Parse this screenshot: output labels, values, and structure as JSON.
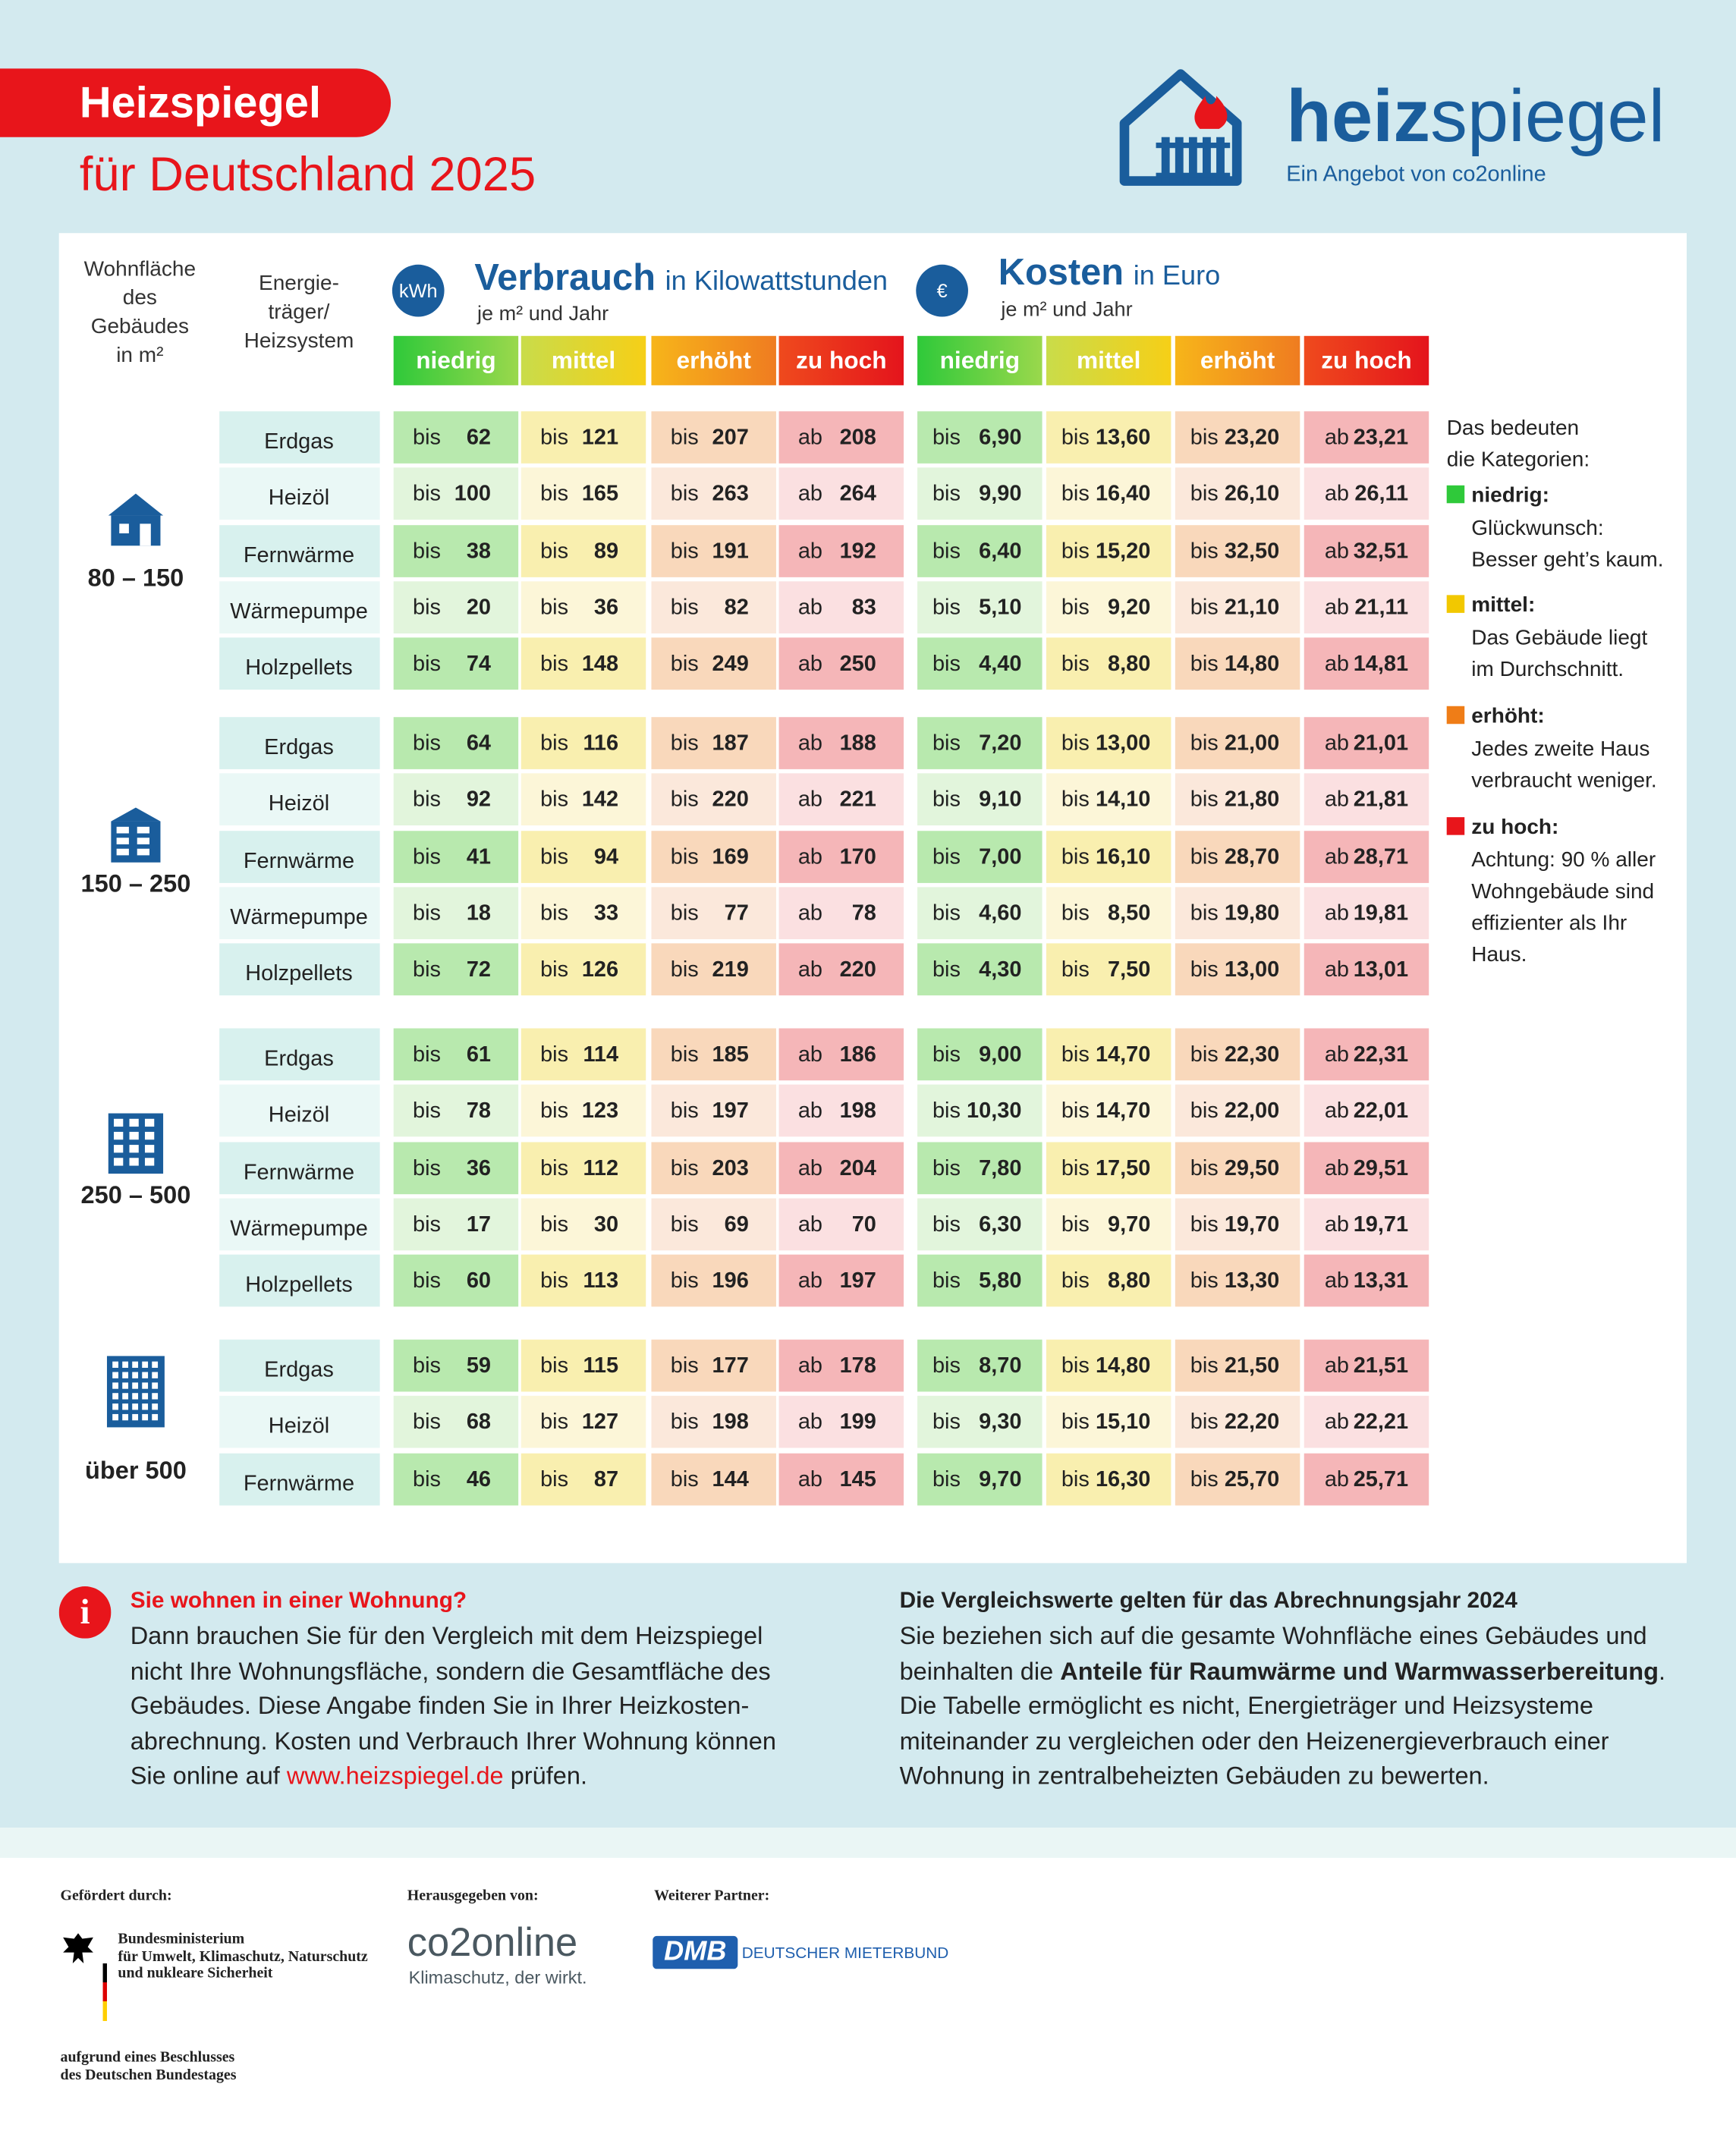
{
  "header": {
    "title": "Heizspiegel",
    "subtitle": "für Deutschland 2025",
    "logo_bold": "heiz",
    "logo_light": "spiegel",
    "logo_tagline": "Ein Angebot von co2online"
  },
  "table": {
    "area_header": "Wohnfläche\ndes\nGebäudes\nin m²",
    "carrier_header": "Energie-\nträger/\nHeizsystem",
    "consumption": {
      "icon": "kWh",
      "title": "Verbrauch",
      "unit": "in Kilowattstunden",
      "per": "je m² und Jahr",
      "categories": [
        "niedrig",
        "mittel",
        "erhöht",
        "zu hoch"
      ]
    },
    "costs": {
      "icon": "€",
      "title": "Kosten",
      "unit": "in Euro",
      "per": "je m² und Jahr",
      "categories": [
        "niedrig",
        "mittel",
        "erhöht",
        "zu hoch"
      ]
    },
    "groups": [
      {
        "area": "80 – 150",
        "rows": [
          {
            "carrier": "Erdgas",
            "v": [
              [
                "bis",
                "62"
              ],
              [
                "bis",
                "121"
              ],
              [
                "bis",
                "207"
              ],
              [
                "ab",
                "208"
              ]
            ],
            "k": [
              [
                "bis",
                "6,90"
              ],
              [
                "bis",
                "13,60"
              ],
              [
                "bis",
                "23,20"
              ],
              [
                "ab",
                "23,21"
              ]
            ]
          },
          {
            "carrier": "Heizöl",
            "v": [
              [
                "bis",
                "100"
              ],
              [
                "bis",
                "165"
              ],
              [
                "bis",
                "263"
              ],
              [
                "ab",
                "264"
              ]
            ],
            "k": [
              [
                "bis",
                "9,90"
              ],
              [
                "bis",
                "16,40"
              ],
              [
                "bis",
                "26,10"
              ],
              [
                "ab",
                "26,11"
              ]
            ]
          },
          {
            "carrier": "Fernwärme",
            "v": [
              [
                "bis",
                "38"
              ],
              [
                "bis",
                "89"
              ],
              [
                "bis",
                "191"
              ],
              [
                "ab",
                "192"
              ]
            ],
            "k": [
              [
                "bis",
                "6,40"
              ],
              [
                "bis",
                "15,20"
              ],
              [
                "bis",
                "32,50"
              ],
              [
                "ab",
                "32,51"
              ]
            ]
          },
          {
            "carrier": "Wärmepumpe",
            "v": [
              [
                "bis",
                "20"
              ],
              [
                "bis",
                "36"
              ],
              [
                "bis",
                "82"
              ],
              [
                "ab",
                "83"
              ]
            ],
            "k": [
              [
                "bis",
                "5,10"
              ],
              [
                "bis",
                "9,20"
              ],
              [
                "bis",
                "21,10"
              ],
              [
                "ab",
                "21,11"
              ]
            ]
          },
          {
            "carrier": "Holzpellets",
            "v": [
              [
                "bis",
                "74"
              ],
              [
                "bis",
                "148"
              ],
              [
                "bis",
                "249"
              ],
              [
                "ab",
                "250"
              ]
            ],
            "k": [
              [
                "bis",
                "4,40"
              ],
              [
                "bis",
                "8,80"
              ],
              [
                "bis",
                "14,80"
              ],
              [
                "ab",
                "14,81"
              ]
            ]
          }
        ]
      },
      {
        "area": "150 – 250",
        "rows": [
          {
            "carrier": "Erdgas",
            "v": [
              [
                "bis",
                "64"
              ],
              [
                "bis",
                "116"
              ],
              [
                "bis",
                "187"
              ],
              [
                "ab",
                "188"
              ]
            ],
            "k": [
              [
                "bis",
                "7,20"
              ],
              [
                "bis",
                "13,00"
              ],
              [
                "bis",
                "21,00"
              ],
              [
                "ab",
                "21,01"
              ]
            ]
          },
          {
            "carrier": "Heizöl",
            "v": [
              [
                "bis",
                "92"
              ],
              [
                "bis",
                "142"
              ],
              [
                "bis",
                "220"
              ],
              [
                "ab",
                "221"
              ]
            ],
            "k": [
              [
                "bis",
                "9,10"
              ],
              [
                "bis",
                "14,10"
              ],
              [
                "bis",
                "21,80"
              ],
              [
                "ab",
                "21,81"
              ]
            ]
          },
          {
            "carrier": "Fernwärme",
            "v": [
              [
                "bis",
                "41"
              ],
              [
                "bis",
                "94"
              ],
              [
                "bis",
                "169"
              ],
              [
                "ab",
                "170"
              ]
            ],
            "k": [
              [
                "bis",
                "7,00"
              ],
              [
                "bis",
                "16,10"
              ],
              [
                "bis",
                "28,70"
              ],
              [
                "ab",
                "28,71"
              ]
            ]
          },
          {
            "carrier": "Wärmepumpe",
            "v": [
              [
                "bis",
                "18"
              ],
              [
                "bis",
                "33"
              ],
              [
                "bis",
                "77"
              ],
              [
                "ab",
                "78"
              ]
            ],
            "k": [
              [
                "bis",
                "4,60"
              ],
              [
                "bis",
                "8,50"
              ],
              [
                "bis",
                "19,80"
              ],
              [
                "ab",
                "19,81"
              ]
            ]
          },
          {
            "carrier": "Holzpellets",
            "v": [
              [
                "bis",
                "72"
              ],
              [
                "bis",
                "126"
              ],
              [
                "bis",
                "219"
              ],
              [
                "ab",
                "220"
              ]
            ],
            "k": [
              [
                "bis",
                "4,30"
              ],
              [
                "bis",
                "7,50"
              ],
              [
                "bis",
                "13,00"
              ],
              [
                "ab",
                "13,01"
              ]
            ]
          }
        ]
      },
      {
        "area": "250 – 500",
        "rows": [
          {
            "carrier": "Erdgas",
            "v": [
              [
                "bis",
                "61"
              ],
              [
                "bis",
                "114"
              ],
              [
                "bis",
                "185"
              ],
              [
                "ab",
                "186"
              ]
            ],
            "k": [
              [
                "bis",
                "9,00"
              ],
              [
                "bis",
                "14,70"
              ],
              [
                "bis",
                "22,30"
              ],
              [
                "ab",
                "22,31"
              ]
            ]
          },
          {
            "carrier": "Heizöl",
            "v": [
              [
                "bis",
                "78"
              ],
              [
                "bis",
                "123"
              ],
              [
                "bis",
                "197"
              ],
              [
                "ab",
                "198"
              ]
            ],
            "k": [
              [
                "bis",
                "10,30"
              ],
              [
                "bis",
                "14,70"
              ],
              [
                "bis",
                "22,00"
              ],
              [
                "ab",
                "22,01"
              ]
            ]
          },
          {
            "carrier": "Fernwärme",
            "v": [
              [
                "bis",
                "36"
              ],
              [
                "bis",
                "112"
              ],
              [
                "bis",
                "203"
              ],
              [
                "ab",
                "204"
              ]
            ],
            "k": [
              [
                "bis",
                "7,80"
              ],
              [
                "bis",
                "17,50"
              ],
              [
                "bis",
                "29,50"
              ],
              [
                "ab",
                "29,51"
              ]
            ]
          },
          {
            "carrier": "Wärmepumpe",
            "v": [
              [
                "bis",
                "17"
              ],
              [
                "bis",
                "30"
              ],
              [
                "bis",
                "69"
              ],
              [
                "ab",
                "70"
              ]
            ],
            "k": [
              [
                "bis",
                "6,30"
              ],
              [
                "bis",
                "9,70"
              ],
              [
                "bis",
                "19,70"
              ],
              [
                "ab",
                "19,71"
              ]
            ]
          },
          {
            "carrier": "Holzpellets",
            "v": [
              [
                "bis",
                "60"
              ],
              [
                "bis",
                "113"
              ],
              [
                "bis",
                "196"
              ],
              [
                "ab",
                "197"
              ]
            ],
            "k": [
              [
                "bis",
                "5,80"
              ],
              [
                "bis",
                "8,80"
              ],
              [
                "bis",
                "13,30"
              ],
              [
                "ab",
                "13,31"
              ]
            ]
          }
        ]
      },
      {
        "area": "über 500",
        "rows": [
          {
            "carrier": "Erdgas",
            "v": [
              [
                "bis",
                "59"
              ],
              [
                "bis",
                "115"
              ],
              [
                "bis",
                "177"
              ],
              [
                "ab",
                "178"
              ]
            ],
            "k": [
              [
                "bis",
                "8,70"
              ],
              [
                "bis",
                "14,80"
              ],
              [
                "bis",
                "21,50"
              ],
              [
                "ab",
                "21,51"
              ]
            ]
          },
          {
            "carrier": "Heizöl",
            "v": [
              [
                "bis",
                "68"
              ],
              [
                "bis",
                "127"
              ],
              [
                "bis",
                "198"
              ],
              [
                "ab",
                "199"
              ]
            ],
            "k": [
              [
                "bis",
                "9,30"
              ],
              [
                "bis",
                "15,10"
              ],
              [
                "bis",
                "22,20"
              ],
              [
                "ab",
                "22,21"
              ]
            ]
          },
          {
            "carrier": "Fernwärme",
            "v": [
              [
                "bis",
                "46"
              ],
              [
                "bis",
                "87"
              ],
              [
                "bis",
                "144"
              ],
              [
                "ab",
                "145"
              ]
            ],
            "k": [
              [
                "bis",
                "9,70"
              ],
              [
                "bis",
                "16,30"
              ],
              [
                "bis",
                "25,70"
              ],
              [
                "ab",
                "25,71"
              ]
            ]
          }
        ]
      }
    ]
  },
  "legend": {
    "title": "Das bedeuten\ndie Kategorien:",
    "items": [
      {
        "label": "niedrig:",
        "text": "Glückwunsch:\nBesser geht’s kaum."
      },
      {
        "label": "mittel:",
        "text": "Das Gebäude liegt\nim Durchschnitt."
      },
      {
        "label": "erhöht:",
        "text": "Jedes zweite Haus\nverbraucht weniger."
      },
      {
        "label": "zu hoch:",
        "text": "Achtung: 90 % aller\nWohngebäude sind\neffizienter als Ihr\nHaus."
      }
    ]
  },
  "info": {
    "icon": "i",
    "left": {
      "title": "Sie wohnen in einer Wohnung?",
      "text": "Dann brauchen Sie für den Vergleich mit dem Heizspiegel\nnicht Ihre Wohnungsfläche, sondern die Gesamtfläche des\nGebäudes. Diese Angabe finden Sie in Ihrer Heizkosten-\nabrechnung. Kosten und Verbrauch Ihrer Wohnung können\nSie online auf",
      "link": "www.heizspiegel.de",
      "after": "prüfen."
    },
    "right": {
      "title": "Die Vergleichswerte gelten für das Abrechnungsjahr 2024",
      "text": "Sie beziehen sich auf die gesamte Wohnfläche eines Gebäudes und\nbeinhalten die",
      "bold": "Anteile für Raumwärme und Warmwasserbereitung",
      "after": ".\nDie Tabelle ermöglicht es nicht, Energieträger und Heizsysteme\nmiteinander zu vergleichen oder den Heizenergieverbrauch einer\nWohnung in zentralbeheizten Gebäuden zu bewerten."
    }
  },
  "footer": {
    "funded_label": "Gefördert durch:",
    "ministry": "Bundesministerium\nfür Umwelt, Klimaschutz, Naturschutz\nund nukleare Sicherheit",
    "resolution": "aufgrund eines Beschlusses\ndes Deutschen Bundestages",
    "publisher_label": "Herausgegeben von:",
    "publisher": "co2online",
    "publisher_claim": "Klimaschutz, der wirkt.",
    "partner_label": "Weiterer Partner:",
    "partner_short": "DMB",
    "partner_name": "DEUTSCHER MIETERBUND"
  }
}
